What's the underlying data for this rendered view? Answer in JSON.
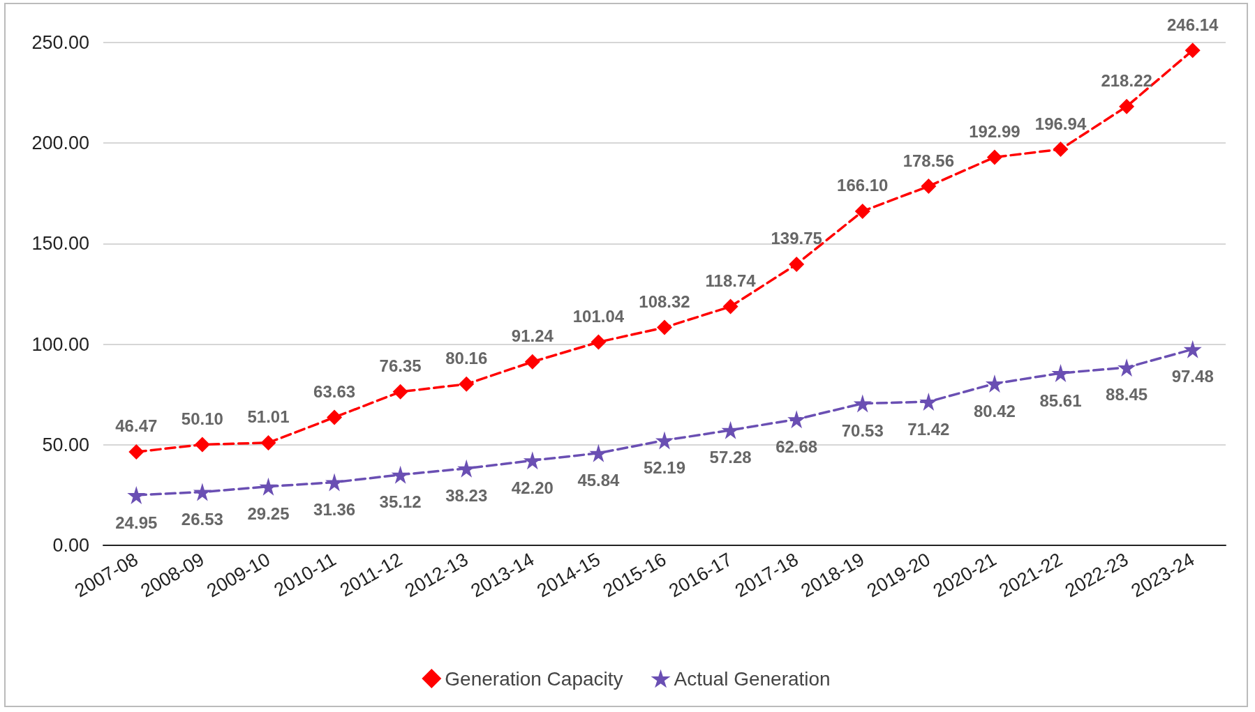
{
  "chart_data": {
    "type": "line",
    "categories": [
      "2007-08",
      "2008-09",
      "2009-10",
      "2010-11",
      "2011-12",
      "2012-13",
      "2013-14",
      "2014-15",
      "2015-16",
      "2016-17",
      "2017-18",
      "2018-19",
      "2019-20",
      "2020-21",
      "2021-22",
      "2022-23",
      "2023-24"
    ],
    "series": [
      {
        "name": "Generation Capacity",
        "color": "#ff0000",
        "marker": "diamond",
        "values": [
          46.47,
          50.1,
          51.01,
          63.63,
          76.35,
          80.16,
          91.24,
          101.04,
          108.32,
          118.74,
          139.75,
          166.1,
          178.56,
          192.99,
          196.94,
          218.22,
          246.14
        ],
        "value_labels": [
          "46.47",
          "50.10",
          "51.01",
          "63.63",
          "76.35",
          "80.16",
          "91.24",
          "101.04",
          "108.32",
          "118.74",
          "139.75",
          "166.10",
          "178.56",
          "192.99",
          "196.94",
          "218.22",
          "246.14"
        ]
      },
      {
        "name": "Actual Generation",
        "color": "#6a4fb3",
        "marker": "star",
        "values": [
          24.95,
          26.53,
          29.25,
          31.36,
          35.12,
          38.23,
          42.2,
          45.84,
          52.19,
          57.28,
          62.68,
          70.53,
          71.42,
          80.42,
          85.61,
          88.45,
          97.48
        ],
        "value_labels": [
          "24.95",
          "26.53",
          "29.25",
          "31.36",
          "35.12",
          "38.23",
          "42.20",
          "45.84",
          "52.19",
          "57.28",
          "62.68",
          "70.53",
          "71.42",
          "80.42",
          "85.61",
          "88.45",
          "97.48"
        ]
      }
    ],
    "ylim": [
      0,
      250
    ],
    "yticks": [
      {
        "value": 0,
        "label": "0.00"
      },
      {
        "value": 50,
        "label": "50.00"
      },
      {
        "value": 100,
        "label": "100.00"
      },
      {
        "value": 150,
        "label": "150.00"
      },
      {
        "value": 200,
        "label": "200.00"
      },
      {
        "value": 250,
        "label": "250.00"
      }
    ],
    "grid": "y",
    "legend": "bottom",
    "line_style": "dashed"
  }
}
